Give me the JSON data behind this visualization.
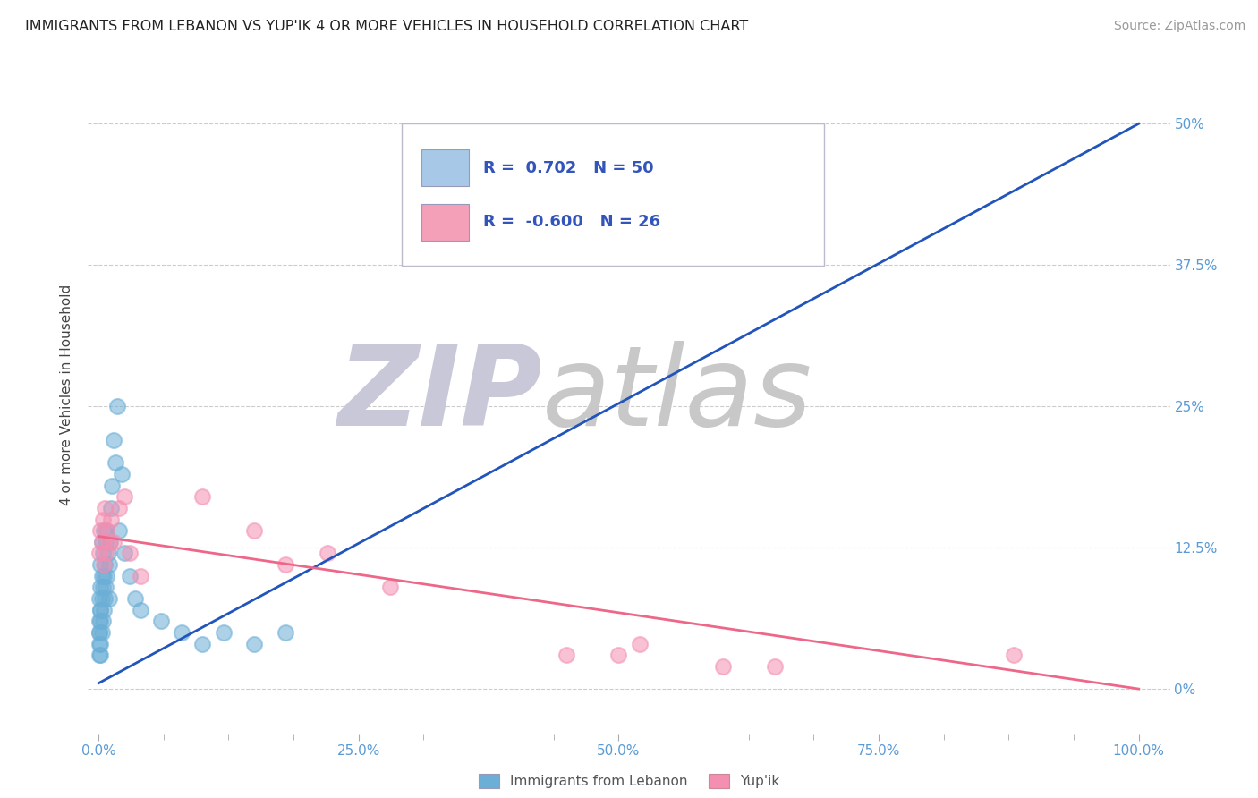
{
  "title": "IMMIGRANTS FROM LEBANON VS YUP'IK 4 OR MORE VEHICLES IN HOUSEHOLD CORRELATION CHART",
  "source": "Source: ZipAtlas.com",
  "ylabel": "4 or more Vehicles in Household",
  "watermark_zip": "ZIP",
  "watermark_atlas": "atlas",
  "legend_entries": [
    {
      "label": "Immigrants from Lebanon",
      "R": 0.702,
      "N": 50,
      "color": "#a8c8e8"
    },
    {
      "label": "Yup'ik",
      "R": -0.6,
      "N": 26,
      "color": "#f4a0b8"
    }
  ],
  "ytick_labels": [
    "0%",
    "12.5%",
    "25%",
    "37.5%",
    "50%"
  ],
  "ytick_values": [
    0.0,
    0.125,
    0.25,
    0.375,
    0.5
  ],
  "xtick_labels": [
    "0.0%",
    "",
    "",
    "",
    "25.0%",
    "",
    "",
    "",
    "50.0%",
    "",
    "",
    "",
    "75.0%",
    "",
    "",
    "",
    "100.0%"
  ],
  "xtick_values": [
    0.0,
    0.0625,
    0.125,
    0.1875,
    0.25,
    0.3125,
    0.375,
    0.4375,
    0.5,
    0.5625,
    0.625,
    0.6875,
    0.75,
    0.8125,
    0.875,
    0.9375,
    1.0
  ],
  "xmin": -0.01,
  "xmax": 1.03,
  "ymin": -0.04,
  "ymax": 0.56,
  "blue_scatter_x": [
    0.0005,
    0.0008,
    0.001,
    0.001,
    0.001,
    0.0012,
    0.0015,
    0.0015,
    0.002,
    0.002,
    0.002,
    0.002,
    0.002,
    0.003,
    0.003,
    0.003,
    0.003,
    0.004,
    0.004,
    0.004,
    0.005,
    0.005,
    0.005,
    0.006,
    0.006,
    0.007,
    0.007,
    0.008,
    0.008,
    0.009,
    0.01,
    0.01,
    0.011,
    0.012,
    0.013,
    0.015,
    0.016,
    0.018,
    0.02,
    0.022,
    0.025,
    0.03,
    0.035,
    0.04,
    0.06,
    0.08,
    0.1,
    0.12,
    0.15,
    0.18
  ],
  "blue_scatter_y": [
    0.05,
    0.03,
    0.04,
    0.06,
    0.08,
    0.05,
    0.03,
    0.07,
    0.04,
    0.06,
    0.07,
    0.09,
    0.11,
    0.05,
    0.08,
    0.1,
    0.13,
    0.06,
    0.09,
    0.12,
    0.07,
    0.1,
    0.14,
    0.08,
    0.11,
    0.09,
    0.13,
    0.1,
    0.14,
    0.12,
    0.08,
    0.11,
    0.13,
    0.16,
    0.18,
    0.22,
    0.2,
    0.25,
    0.14,
    0.19,
    0.12,
    0.1,
    0.08,
    0.07,
    0.06,
    0.05,
    0.04,
    0.05,
    0.04,
    0.05
  ],
  "pink_scatter_x": [
    0.001,
    0.002,
    0.003,
    0.004,
    0.005,
    0.006,
    0.007,
    0.008,
    0.01,
    0.012,
    0.015,
    0.02,
    0.025,
    0.03,
    0.04,
    0.1,
    0.15,
    0.18,
    0.22,
    0.28,
    0.45,
    0.5,
    0.52,
    0.6,
    0.65,
    0.88
  ],
  "pink_scatter_y": [
    0.12,
    0.14,
    0.13,
    0.15,
    0.11,
    0.16,
    0.12,
    0.14,
    0.13,
    0.15,
    0.13,
    0.16,
    0.17,
    0.12,
    0.1,
    0.17,
    0.14,
    0.11,
    0.12,
    0.09,
    0.03,
    0.03,
    0.04,
    0.02,
    0.02,
    0.03
  ],
  "blue_line_x": [
    0.0,
    1.0
  ],
  "blue_line_y": [
    0.005,
    0.5
  ],
  "pink_line_x": [
    0.0,
    1.0
  ],
  "pink_line_y": [
    0.135,
    0.0
  ],
  "blue_color": "#6baed6",
  "pink_color": "#f48fb1",
  "blue_line_color": "#2255bb",
  "pink_line_color": "#ee6688",
  "title_color": "#222222",
  "axis_label_color": "#444444",
  "tick_color": "#5b9bd5",
  "grid_color": "#cccccc",
  "watermark_zip_color": "#c8c8d8",
  "watermark_atlas_color": "#c8c8c8",
  "legend_border_color": "#bbbbbb",
  "legend_text_color": "#3355bb"
}
